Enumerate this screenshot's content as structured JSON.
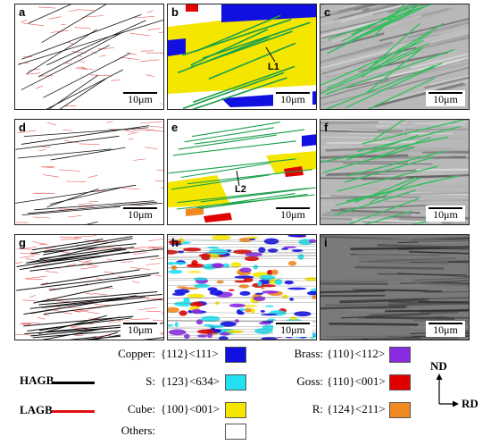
{
  "panels": [
    {
      "label": "a",
      "scale": "10μm",
      "type": "boundary"
    },
    {
      "label": "b",
      "scale": "10μm",
      "type": "ebsd-cube",
      "annotation": "L1"
    },
    {
      "label": "c",
      "scale": "10μm",
      "type": "gray-green"
    },
    {
      "label": "d",
      "scale": "10μm",
      "type": "boundary"
    },
    {
      "label": "e",
      "scale": "10μm",
      "type": "ebsd-sparse",
      "annotation": "L2"
    },
    {
      "label": "f",
      "scale": "10μm",
      "type": "gray-green"
    },
    {
      "label": "g",
      "scale": "10μm",
      "type": "boundary-dense"
    },
    {
      "label": "h",
      "scale": "10μm",
      "type": "ebsd-mixed"
    },
    {
      "label": "i",
      "scale": "10μm",
      "type": "gray-dark"
    }
  ],
  "boundaries": [
    {
      "label": "HAGB",
      "color": "#000000"
    },
    {
      "label": "LAGB",
      "color": "#e01010"
    }
  ],
  "textures": [
    {
      "name": "Copper:",
      "miller": "{112}<111>",
      "color": "#1010e0"
    },
    {
      "name": "S:",
      "miller": "{123}<634>",
      "color": "#22e0f0"
    },
    {
      "name": "Cube:",
      "miller": "{100}<001>",
      "color": "#f5e600"
    },
    {
      "name": "Others:",
      "miller": "",
      "color": "#ffffff"
    },
    {
      "name": "Brass:",
      "miller": "{110}<112>",
      "color": "#8a2be2"
    },
    {
      "name": "Goss:",
      "miller": "{110}<001>",
      "color": "#e00000"
    },
    {
      "name": "R:",
      "miller": "{124}<211>",
      "color": "#f08a20"
    }
  ],
  "axes": {
    "nd": "ND",
    "rd": "RD"
  }
}
